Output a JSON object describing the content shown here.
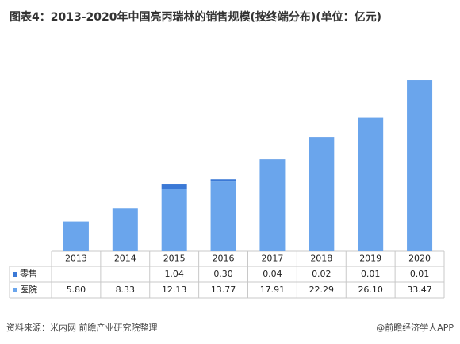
{
  "chart_data": {
    "type": "bar",
    "stacked": true,
    "title": "图表4：2013-2020年中国亮丙瑞林的销售规模(按终端分布)(单位：亿元)",
    "categories": [
      "2013",
      "2014",
      "2015",
      "2016",
      "2017",
      "2018",
      "2019",
      "2020"
    ],
    "series": [
      {
        "name": "医院",
        "color": "#6aa5ec",
        "values": [
          5.8,
          8.33,
          12.13,
          13.77,
          17.91,
          22.29,
          26.1,
          33.47
        ],
        "value_labels": [
          "5.80",
          "8.33",
          "12.13",
          "13.77",
          "17.91",
          "22.29",
          "26.10",
          "33.47"
        ]
      },
      {
        "name": "零售",
        "color": "#3b79d6",
        "values": [
          null,
          null,
          1.04,
          0.3,
          0.04,
          0.02,
          0.01,
          0.01
        ],
        "value_labels": [
          null,
          null,
          "1.04",
          "0.30",
          "0.04",
          "0.02",
          "0.01",
          "0.01"
        ]
      }
    ],
    "source": "资料来源：米内网 前瞻产业研究院整理",
    "credit": "@前瞻经济学人APP"
  }
}
